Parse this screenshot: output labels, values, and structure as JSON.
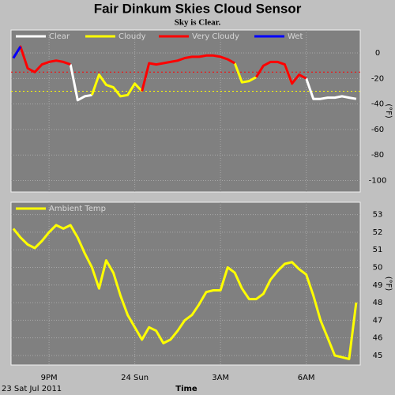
{
  "title": "Fair Dinkum Skies Cloud Sensor",
  "subtitle": "Sky is Clear.",
  "chart_data": [
    {
      "type": "line",
      "y_label": "(°F)",
      "x": [
        19.75,
        20,
        20.25,
        20.5,
        20.75,
        21,
        21.25,
        21.5,
        21.75,
        22,
        22.25,
        22.5,
        22.75,
        23,
        23.25,
        23.5,
        23.75,
        24,
        24.25,
        24.5,
        24.75,
        25,
        25.25,
        25.5,
        25.75,
        26,
        26.25,
        26.5,
        26.75,
        27,
        27.25,
        27.5,
        27.75,
        28,
        28.25,
        28.5,
        28.75,
        29,
        29.25,
        29.5,
        29.75,
        30,
        30.25,
        30.5,
        30.75,
        31,
        31.25,
        31.5,
        31.75
      ],
      "series": [
        {
          "name": "Clear",
          "color": "#ffffff",
          "values": [
            null,
            null,
            null,
            null,
            null,
            null,
            null,
            null,
            -9,
            -37,
            -34,
            -33,
            null,
            null,
            null,
            null,
            null,
            null,
            null,
            null,
            null,
            null,
            null,
            null,
            null,
            null,
            null,
            null,
            null,
            null,
            null,
            null,
            null,
            null,
            null,
            null,
            null,
            null,
            null,
            null,
            null,
            -20,
            -36,
            -36,
            -35,
            -35,
            -34,
            -35,
            -36
          ]
        },
        {
          "name": "Cloudy",
          "color": "#ffff00",
          "values": [
            null,
            null,
            null,
            null,
            null,
            null,
            null,
            null,
            null,
            null,
            null,
            -33,
            -17,
            -25,
            -27,
            -34,
            -33,
            -24,
            -30,
            null,
            null,
            null,
            null,
            null,
            null,
            null,
            null,
            null,
            null,
            null,
            null,
            -8,
            -23,
            -22,
            -19,
            null,
            null,
            null,
            -9,
            -24,
            null,
            null,
            null,
            null,
            null,
            null,
            null,
            null,
            null
          ]
        },
        {
          "name": "Very Cloudy",
          "color": "#ff0000",
          "values": [
            -4,
            5,
            -12,
            -15,
            -9,
            -7,
            -6,
            -7,
            -9,
            null,
            null,
            null,
            null,
            null,
            null,
            null,
            null,
            null,
            -30,
            -8,
            -9,
            -8,
            -7,
            -6,
            -4,
            -3,
            -3,
            -2,
            -2,
            -3,
            -5,
            -8,
            null,
            null,
            -19,
            -10,
            -7,
            -7,
            -9,
            -24,
            -17,
            -20,
            null,
            null,
            null,
            null,
            null,
            null,
            null
          ]
        },
        {
          "name": "Wet",
          "color": "#0000ff",
          "values": [
            -4,
            5,
            null,
            null,
            null,
            null,
            null,
            null,
            null,
            null,
            null,
            null,
            null,
            null,
            null,
            null,
            null,
            null,
            null,
            null,
            null,
            null,
            null,
            null,
            null,
            null,
            null,
            null,
            null,
            null,
            null,
            null,
            null,
            null,
            null,
            null,
            null,
            null,
            null,
            null,
            null,
            null,
            null,
            null,
            null,
            null,
            null,
            null,
            null
          ]
        }
      ],
      "thresholds": [
        {
          "value": -15,
          "color": "#ff0000"
        },
        {
          "value": -30,
          "color": "#ffff00"
        }
      ],
      "xlim": [
        19.67,
        31.89
      ],
      "xticks": [
        21,
        24,
        27,
        30
      ],
      "ylim": [
        -109,
        18
      ],
      "yticks": [
        0,
        -20,
        -40,
        -60,
        -80,
        -100
      ],
      "grid": true
    },
    {
      "type": "line",
      "y_label": "(°F)",
      "x_label": "Time",
      "date_label": "23 Sat Jul 2011",
      "x": [
        19.75,
        20,
        20.25,
        20.5,
        20.75,
        21,
        21.25,
        21.5,
        21.75,
        22,
        22.25,
        22.5,
        22.75,
        23,
        23.25,
        23.5,
        23.75,
        24,
        24.25,
        24.5,
        24.75,
        25,
        25.25,
        25.5,
        25.75,
        26,
        26.25,
        26.5,
        26.75,
        27,
        27.25,
        27.5,
        27.75,
        28,
        28.25,
        28.5,
        28.75,
        29,
        29.25,
        29.5,
        29.75,
        30,
        30.25,
        30.5,
        30.75,
        31,
        31.25,
        31.5,
        31.75
      ],
      "series": [
        {
          "name": "Ambient Temp",
          "color": "#ffff00",
          "values": [
            52.2,
            51.7,
            51.3,
            51.1,
            51.5,
            52.0,
            52.4,
            52.2,
            52.4,
            51.7,
            50.8,
            50.0,
            48.8,
            50.4,
            49.7,
            48.4,
            47.3,
            46.6,
            45.9,
            46.6,
            46.4,
            45.7,
            45.9,
            46.4,
            47.0,
            47.3,
            47.9,
            48.6,
            48.7,
            48.7,
            50.0,
            49.7,
            48.8,
            48.2,
            48.2,
            48.5,
            49.3,
            49.8,
            50.2,
            50.3,
            49.9,
            49.6,
            48.4,
            47.0,
            46.0,
            45.0,
            44.9,
            44.8,
            48.0
          ]
        }
      ],
      "xlim": [
        19.67,
        31.89
      ],
      "xticks": [
        {
          "value": 21,
          "label": "9PM"
        },
        {
          "value": 24,
          "label": "24 Sun"
        },
        {
          "value": 27,
          "label": "3AM"
        },
        {
          "value": 30,
          "label": "6AM"
        }
      ],
      "ylim": [
        44.46,
        53.7
      ],
      "yticks": [
        53,
        52,
        51,
        50,
        49,
        48,
        47,
        46,
        45
      ],
      "grid": true
    }
  ]
}
